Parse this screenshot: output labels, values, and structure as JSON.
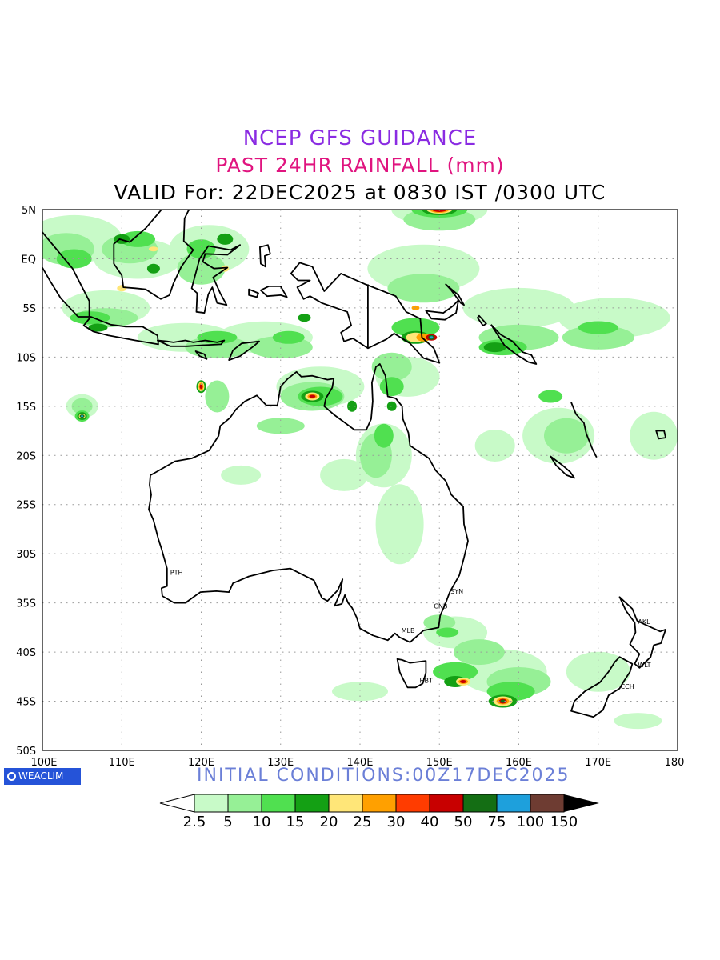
{
  "header": {
    "line1": "NCEP GFS GUIDANCE",
    "line2": "PAST 24HR RAINFALL (mm)",
    "line3": "VALID For: 22DEC2025 at 0830 IST /0300 UTC"
  },
  "footer": {
    "initial_conditions": "INITIAL CONDITIONS:00Z17DEC2025",
    "logo_text": "WEACLIM"
  },
  "map": {
    "lon_labels": [
      "100E",
      "110E",
      "120E",
      "130E",
      "140E",
      "150E",
      "160E",
      "170E",
      "180"
    ],
    "lat_labels": [
      "5N",
      "EQ",
      "5S",
      "10S",
      "15S",
      "20S",
      "25S",
      "30S",
      "35S",
      "40S",
      "45S",
      "50S"
    ],
    "city_labels": [
      {
        "text": "PTH",
        "lon": 115.9,
        "lat": -31.9
      },
      {
        "text": "SYN",
        "lon": 151.2,
        "lat": -33.8
      },
      {
        "text": "CNB",
        "lon": 149.1,
        "lat": -35.3
      },
      {
        "text": "MLB",
        "lon": 145.0,
        "lat": -37.8
      },
      {
        "text": "HBT",
        "lon": 147.3,
        "lat": -42.9
      },
      {
        "text": "AKL",
        "lon": 174.8,
        "lat": -36.9
      },
      {
        "text": "WLT",
        "lon": 174.8,
        "lat": -41.3
      },
      {
        "text": "CCH",
        "lon": 172.6,
        "lat": -43.5
      }
    ]
  },
  "legend": {
    "labels": [
      "2.5",
      "5",
      "10",
      "15",
      "20",
      "25",
      "30",
      "40",
      "50",
      "75",
      "100",
      "150"
    ],
    "colors": [
      "#c8fac8",
      "#96f096",
      "#50e050",
      "#14a014",
      "#ffe678",
      "#ffa000",
      "#ff3c00",
      "#c80000",
      "#146e14",
      "#1ea0dc",
      "#6e3c32"
    ]
  },
  "rain_colors": {
    "light": "#c8fac8",
    "medium": "#96f096",
    "green": "#50e050",
    "dark_green": "#14a014",
    "yellow": "#ffe678",
    "orange": "#ffa000",
    "red_orange": "#ff3c00",
    "red": "#c80000",
    "deep_green": "#146e14",
    "blue": "#1ea0dc",
    "brown": "#6e3c32"
  }
}
